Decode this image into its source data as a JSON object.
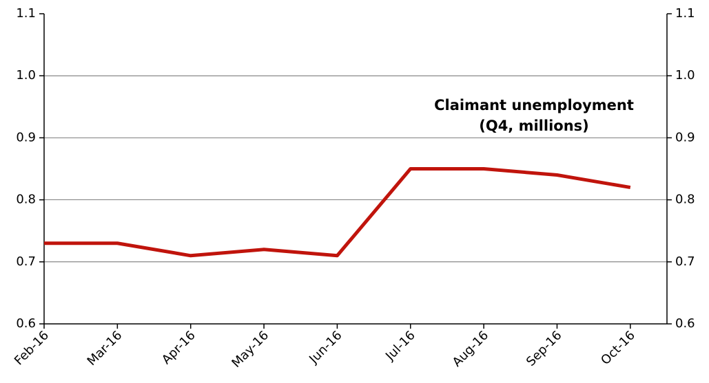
{
  "chart_data": {
    "type": "line",
    "title": "Claimant unemployment",
    "subtitle": "(Q4, millions)",
    "categories": [
      "Feb-16",
      "Mar-16",
      "Apr-16",
      "May-16",
      "Jun-16",
      "Jul-16",
      "Aug-16",
      "Sep-16",
      "Oct-16"
    ],
    "series": [
      {
        "name": "Claimant unemployment",
        "color": "#c0140c",
        "values": [
          0.73,
          0.73,
          0.71,
          0.72,
          0.71,
          0.85,
          0.85,
          0.84,
          0.82
        ]
      }
    ],
    "ylim": [
      0.6,
      1.1
    ],
    "yticks": [
      0.6,
      0.7,
      0.8,
      0.9,
      {
        "value": 1,
        "label": "1.0"
      },
      1.1
    ],
    "y2lim": [
      0.6,
      1.1
    ],
    "y2ticks": [
      0.6,
      0.7,
      0.8,
      0.9,
      {
        "value": 1,
        "label": "1.0"
      },
      1.1
    ],
    "grid": true
  }
}
